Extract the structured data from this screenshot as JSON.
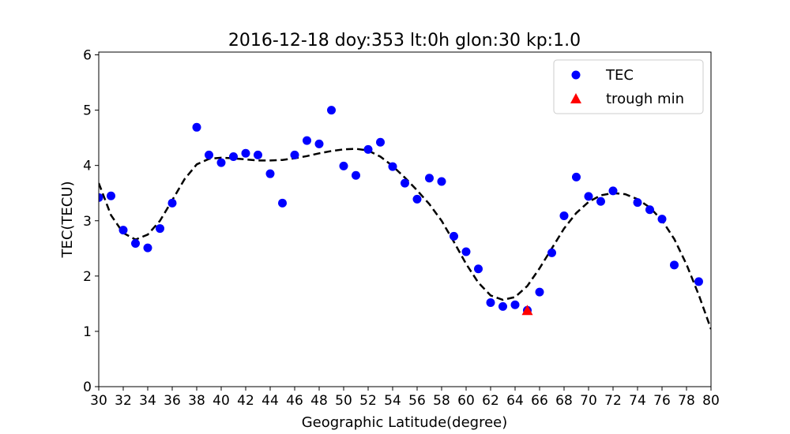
{
  "chart_data": {
    "type": "scatter",
    "title": "2016-12-18  doy:353  lt:0h  glon:30  kp:1.0",
    "xlabel": "Geographic Latitude(degree)",
    "ylabel": "TEC(TECU)",
    "xlim": [
      30,
      80
    ],
    "ylim": [
      0,
      6.05
    ],
    "xticks": [
      30,
      32,
      34,
      36,
      38,
      40,
      42,
      44,
      46,
      48,
      50,
      52,
      54,
      56,
      58,
      60,
      62,
      64,
      66,
      68,
      70,
      72,
      74,
      76,
      78,
      80
    ],
    "yticks": [
      0,
      1,
      2,
      3,
      4,
      5,
      6
    ],
    "legend_position": "upper right",
    "series": [
      {
        "name": "TEC",
        "kind": "scatter",
        "color": "#0000ff",
        "x": [
          30,
          31,
          32,
          33,
          34,
          35,
          36,
          38,
          39,
          40,
          41,
          42,
          43,
          44,
          45,
          46,
          47,
          48,
          49,
          50,
          51,
          52,
          53,
          54,
          55,
          56,
          57,
          58,
          59,
          60,
          61,
          62,
          63,
          64,
          65,
          66,
          67,
          68,
          69,
          70,
          71,
          72,
          74,
          75,
          76,
          77,
          79
        ],
        "y": [
          3.42,
          3.45,
          2.83,
          2.59,
          2.51,
          2.86,
          3.32,
          4.69,
          4.19,
          4.05,
          4.16,
          4.22,
          4.19,
          3.85,
          3.32,
          4.19,
          4.45,
          4.39,
          5.0,
          3.99,
          3.82,
          4.29,
          4.42,
          3.98,
          3.68,
          3.39,
          3.77,
          3.71,
          2.72,
          2.44,
          2.13,
          1.52,
          1.45,
          1.48,
          1.38,
          1.71,
          2.42,
          3.09,
          3.79,
          3.44,
          3.35,
          3.54,
          3.33,
          3.2,
          3.03,
          2.2,
          1.9
        ]
      },
      {
        "name": "trough min",
        "kind": "marker",
        "color": "#ff0000",
        "marker": "triangle",
        "x": [
          65
        ],
        "y": [
          1.38
        ]
      },
      {
        "name": "",
        "kind": "line",
        "style": "dashed",
        "color": "#000000",
        "x": [
          30,
          31,
          32,
          33,
          34,
          35,
          36,
          37,
          38,
          39,
          40,
          41,
          42,
          43,
          44,
          45,
          46,
          47,
          48,
          49,
          50,
          51,
          52,
          53,
          54,
          55,
          56,
          57,
          58,
          59,
          60,
          61,
          62,
          63,
          64,
          65,
          66,
          67,
          68,
          69,
          70,
          71,
          72,
          73,
          74,
          75,
          76,
          77,
          78,
          79,
          80
        ],
        "y": [
          3.68,
          3.1,
          2.78,
          2.66,
          2.75,
          3.0,
          3.37,
          3.75,
          4.02,
          4.12,
          4.14,
          4.13,
          4.11,
          4.09,
          4.09,
          4.1,
          4.13,
          4.17,
          4.22,
          4.26,
          4.29,
          4.3,
          4.27,
          4.16,
          3.99,
          3.78,
          3.55,
          3.3,
          3.0,
          2.62,
          2.22,
          1.88,
          1.65,
          1.57,
          1.62,
          1.82,
          2.14,
          2.5,
          2.86,
          3.14,
          3.34,
          3.46,
          3.5,
          3.48,
          3.39,
          3.24,
          3.01,
          2.67,
          2.21,
          1.66,
          1.04
        ]
      }
    ]
  }
}
